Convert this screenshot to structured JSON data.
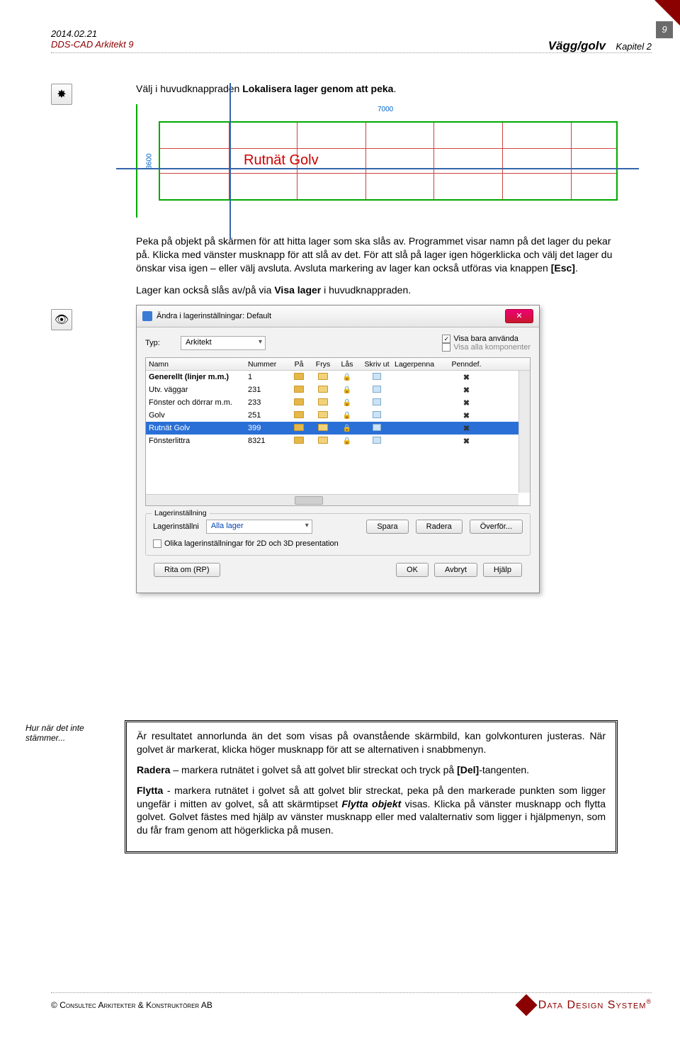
{
  "header": {
    "date": "2014.02.21",
    "product": "DDS-CAD Arkitekt 9",
    "section": "Vägg/golv",
    "chapter": "Kapitel 2",
    "pagenum": "9"
  },
  "icons": {
    "locate_layer": "✸",
    "visibility": "👁"
  },
  "para1_pre": "Välj i huvudknappraden ",
  "para1_bold": "Lokalisera lager genom att peka",
  "para1_post": ".",
  "grid": {
    "label": "Rutnät Golv",
    "dim_top": "7000",
    "dim_left": "3600"
  },
  "para2": "Peka på objekt på skärmen för att hitta lager som ska slås av. Programmet visar namn på det lager du pekar på. Klicka med vänster musknapp för att slå av det. För att slå på lager igen högerklicka och välj det lager du önskar visa igen – eller välj avsluta. Avsluta markering av lager kan också utföras via knappen ",
  "para2_key": "[Esc]",
  "para2_post": ".",
  "para3_pre": "Lager kan också slås av/på via ",
  "para3_bold": "Visa lager",
  "para3_post": " i huvudknappraden.",
  "dialog": {
    "title": "Ändra i lagerinställningar: Default",
    "type_label": "Typ:",
    "type_value": "Arkitekt",
    "chk_used": "Visa bara använda",
    "chk_used_checked": "✓",
    "chk_all": "Visa alla komponenter",
    "columns": [
      "Namn",
      "Nummer",
      "På",
      "Frys",
      "Lås",
      "Skriv ut",
      "Lagerpenna",
      "Penndef."
    ],
    "rows": [
      {
        "name": "Generellt (linjer m.m.)",
        "num": "1",
        "bold": true
      },
      {
        "name": "Utv. väggar",
        "num": "231"
      },
      {
        "name": "Fönster och dörrar m.m.",
        "num": "233"
      },
      {
        "name": "Golv",
        "num": "251"
      },
      {
        "name": "Rutnät Golv",
        "num": "399",
        "selected": true
      },
      {
        "name": "Fönsterlittra",
        "num": "8321"
      }
    ],
    "group_legend": "Lagerinställning",
    "layer_label": "Lagerinställni",
    "layer_value": "Alla lager",
    "btn_save": "Spara",
    "btn_delete": "Radera",
    "btn_transfer": "Överför...",
    "chk_2d3d": "Olika lagerinställningar för 2D och 3D presentation",
    "btn_redraw": "Rita om (RP)",
    "btn_ok": "OK",
    "btn_cancel": "Avbryt",
    "btn_help": "Hjälp"
  },
  "margin_note": "Hur när det inte stämmer...",
  "frame": {
    "p1": "Är resultatet annorlunda än det som visas på ovanstående skärmbild, kan golvkonturen justeras. När golvet är markerat, klicka höger musknapp för att se alternativen i snabbmenyn.",
    "p2_b": "Radera",
    "p2": " – markera rutnätet i golvet så att golvet blir streckat och tryck på ",
    "p2_k": "[Del]",
    "p2_post": "-tangenten.",
    "p3_b": "Flytta",
    "p3a": " - markera rutnätet i golvet så att golvet blir streckat, peka på den markerade punkten som ligger ungefär i mitten av golvet, så att skärmtipset ",
    "p3_i": "Flytta objekt",
    "p3b": " visas. Klicka på vänster musknapp och flytta golvet. Golvet fästes med hjälp av vänster musknapp eller med valalternativ som ligger i hjälpmenyn, som du får fram genom att högerklicka på musen."
  },
  "footer": {
    "copyright": "©",
    "company": "Consultec Arkitekter & Konstruktörer AB",
    "brand": "Data Design System",
    "reg": "®"
  }
}
